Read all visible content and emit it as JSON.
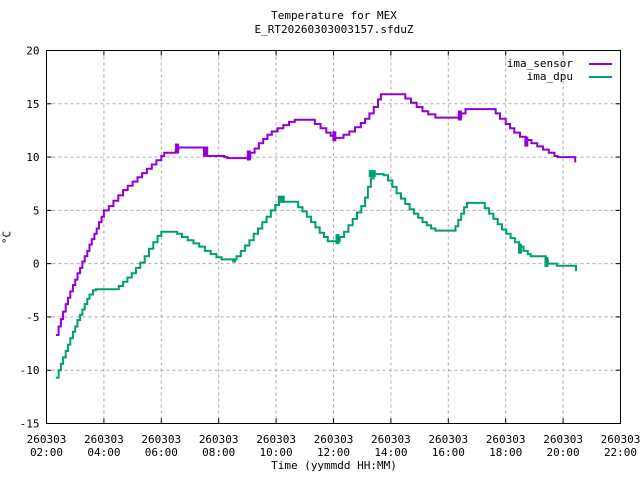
{
  "header": {
    "title": "Temperature for MEX",
    "subtitle": "E_RT20260303003157.sfduZ"
  },
  "chart_data": {
    "type": "line",
    "style": "steps",
    "title": "Temperature for MEX",
    "subtitle": "E_RT20260303003157.sfduZ",
    "xlabel": "Time (yymmdd HH:MM)",
    "ylabel": "°C",
    "x_date_label": "260303",
    "xlim_hours": [
      2,
      22
    ],
    "ylim": [
      -15,
      20
    ],
    "grid": true,
    "legend_position": "top-right-inside",
    "x_ticks": [
      {
        "hour": 2,
        "date": "260303",
        "time": "02:00"
      },
      {
        "hour": 4,
        "date": "260303",
        "time": "04:00"
      },
      {
        "hour": 6,
        "date": "260303",
        "time": "06:00"
      },
      {
        "hour": 8,
        "date": "260303",
        "time": "08:00"
      },
      {
        "hour": 10,
        "date": "260303",
        "time": "10:00"
      },
      {
        "hour": 12,
        "date": "260303",
        "time": "12:00"
      },
      {
        "hour": 14,
        "date": "260303",
        "time": "14:00"
      },
      {
        "hour": 16,
        "date": "260303",
        "time": "16:00"
      },
      {
        "hour": 18,
        "date": "260303",
        "time": "18:00"
      },
      {
        "hour": 20,
        "date": "260303",
        "time": "20:00"
      },
      {
        "hour": 22,
        "date": "260303",
        "time": "22:00"
      }
    ],
    "y_ticks": [
      -15,
      -10,
      -5,
      0,
      5,
      10,
      15,
      20
    ],
    "colors": {
      "grid": "#a8a8a8",
      "axis": "#000000",
      "background": "#ffffff"
    },
    "series": [
      {
        "name": "ima_sensor",
        "color": "#9400d3",
        "points": [
          [
            2.33,
            -6.7
          ],
          [
            2.42,
            -5.9
          ],
          [
            2.5,
            -5.2
          ],
          [
            2.58,
            -4.5
          ],
          [
            2.67,
            -3.8
          ],
          [
            2.75,
            -3.2
          ],
          [
            2.83,
            -2.6
          ],
          [
            2.92,
            -2.0
          ],
          [
            3.0,
            -1.5
          ],
          [
            3.08,
            -0.9
          ],
          [
            3.17,
            -0.4
          ],
          [
            3.25,
            0.2
          ],
          [
            3.33,
            0.7
          ],
          [
            3.42,
            1.2
          ],
          [
            3.5,
            1.8
          ],
          [
            3.58,
            2.3
          ],
          [
            3.67,
            2.8
          ],
          [
            3.75,
            3.3
          ],
          [
            3.83,
            3.9
          ],
          [
            3.92,
            4.4
          ],
          [
            4.0,
            5.0
          ],
          [
            4.17,
            5.4
          ],
          [
            4.33,
            5.9
          ],
          [
            4.5,
            6.4
          ],
          [
            4.67,
            6.9
          ],
          [
            4.83,
            7.3
          ],
          [
            5.0,
            7.7
          ],
          [
            5.17,
            8.1
          ],
          [
            5.33,
            8.5
          ],
          [
            5.5,
            8.9
          ],
          [
            5.67,
            9.3
          ],
          [
            5.83,
            9.7
          ],
          [
            6.0,
            10.1
          ],
          [
            6.1,
            10.4
          ],
          [
            6.5,
            10.7
          ],
          [
            6.6,
            10.9
          ],
          [
            7.45,
            10.9
          ],
          [
            7.6,
            10.1
          ],
          [
            8.2,
            10.0
          ],
          [
            8.3,
            9.9
          ],
          [
            9.0,
            9.9
          ],
          [
            9.1,
            10.4
          ],
          [
            9.25,
            10.8
          ],
          [
            9.4,
            11.3
          ],
          [
            9.55,
            11.7
          ],
          [
            9.7,
            12.1
          ],
          [
            9.85,
            12.4
          ],
          [
            10.05,
            12.7
          ],
          [
            10.25,
            13.0
          ],
          [
            10.45,
            13.3
          ],
          [
            10.65,
            13.5
          ],
          [
            11.2,
            13.5
          ],
          [
            11.35,
            13.1
          ],
          [
            11.55,
            12.7
          ],
          [
            11.75,
            12.3
          ],
          [
            11.9,
            12.0
          ],
          [
            12.0,
            11.8
          ],
          [
            12.25,
            11.8
          ],
          [
            12.35,
            12.1
          ],
          [
            12.55,
            12.4
          ],
          [
            12.75,
            12.8
          ],
          [
            12.95,
            13.2
          ],
          [
            13.1,
            13.6
          ],
          [
            13.25,
            14.1
          ],
          [
            13.4,
            14.7
          ],
          [
            13.55,
            15.4
          ],
          [
            13.65,
            15.9
          ],
          [
            14.35,
            15.9
          ],
          [
            14.5,
            15.5
          ],
          [
            14.7,
            15.1
          ],
          [
            14.9,
            14.7
          ],
          [
            15.1,
            14.3
          ],
          [
            15.3,
            14.0
          ],
          [
            15.55,
            13.7
          ],
          [
            16.35,
            13.7
          ],
          [
            16.45,
            14.1
          ],
          [
            16.6,
            14.5
          ],
          [
            17.5,
            14.5
          ],
          [
            17.65,
            14.1
          ],
          [
            17.8,
            13.6
          ],
          [
            18.0,
            13.1
          ],
          [
            18.15,
            12.7
          ],
          [
            18.3,
            12.3
          ],
          [
            18.5,
            11.9
          ],
          [
            18.7,
            11.6
          ],
          [
            18.9,
            11.3
          ],
          [
            19.1,
            11.0
          ],
          [
            19.3,
            10.7
          ],
          [
            19.5,
            10.4
          ],
          [
            19.7,
            10.1
          ],
          [
            19.8,
            10.0
          ],
          [
            20.3,
            10.0
          ],
          [
            20.42,
            9.5
          ]
        ],
        "square_markers": [],
        "emphasis": [
          [
            6.55,
            10.8
          ],
          [
            7.52,
            10.5
          ],
          [
            9.05,
            10.15
          ],
          [
            12.03,
            11.95
          ],
          [
            16.4,
            13.9
          ],
          [
            18.72,
            11.45
          ]
        ]
      },
      {
        "name": "ima_dpu",
        "color": "#009e73",
        "points": [
          [
            2.33,
            -10.7
          ],
          [
            2.42,
            -10.0
          ],
          [
            2.5,
            -9.4
          ],
          [
            2.58,
            -8.8
          ],
          [
            2.67,
            -8.2
          ],
          [
            2.75,
            -7.6
          ],
          [
            2.83,
            -7.0
          ],
          [
            2.92,
            -6.4
          ],
          [
            3.0,
            -5.9
          ],
          [
            3.08,
            -5.3
          ],
          [
            3.17,
            -4.8
          ],
          [
            3.25,
            -4.3
          ],
          [
            3.33,
            -3.8
          ],
          [
            3.42,
            -3.3
          ],
          [
            3.5,
            -2.9
          ],
          [
            3.62,
            -2.5
          ],
          [
            3.72,
            -2.4
          ],
          [
            4.4,
            -2.4
          ],
          [
            4.52,
            -2.1
          ],
          [
            4.67,
            -1.7
          ],
          [
            4.82,
            -1.3
          ],
          [
            4.97,
            -0.9
          ],
          [
            5.12,
            -0.4
          ],
          [
            5.27,
            0.1
          ],
          [
            5.42,
            0.7
          ],
          [
            5.57,
            1.4
          ],
          [
            5.72,
            2.0
          ],
          [
            5.87,
            2.6
          ],
          [
            6.0,
            3.0
          ],
          [
            6.45,
            3.0
          ],
          [
            6.55,
            2.8
          ],
          [
            6.72,
            2.5
          ],
          [
            6.92,
            2.2
          ],
          [
            7.12,
            1.9
          ],
          [
            7.32,
            1.6
          ],
          [
            7.52,
            1.2
          ],
          [
            7.72,
            0.9
          ],
          [
            7.92,
            0.6
          ],
          [
            8.1,
            0.4
          ],
          [
            8.45,
            0.4
          ],
          [
            8.5,
            0.2
          ],
          [
            8.57,
            0.4
          ],
          [
            8.62,
            0.7
          ],
          [
            8.77,
            1.2
          ],
          [
            8.92,
            1.7
          ],
          [
            9.07,
            2.2
          ],
          [
            9.22,
            2.8
          ],
          [
            9.37,
            3.3
          ],
          [
            9.52,
            3.9
          ],
          [
            9.67,
            4.4
          ],
          [
            9.82,
            5.0
          ],
          [
            9.97,
            5.5
          ],
          [
            10.1,
            5.8
          ],
          [
            10.65,
            5.8
          ],
          [
            10.77,
            5.3
          ],
          [
            10.92,
            4.9
          ],
          [
            11.07,
            4.4
          ],
          [
            11.22,
            3.9
          ],
          [
            11.37,
            3.4
          ],
          [
            11.52,
            2.9
          ],
          [
            11.67,
            2.5
          ],
          [
            11.8,
            2.1
          ],
          [
            12.12,
            2.1
          ],
          [
            12.22,
            2.5
          ],
          [
            12.37,
            3.0
          ],
          [
            12.52,
            3.6
          ],
          [
            12.67,
            4.2
          ],
          [
            12.82,
            4.8
          ],
          [
            12.97,
            5.4
          ],
          [
            13.1,
            6.2
          ],
          [
            13.2,
            7.2
          ],
          [
            13.3,
            8.0
          ],
          [
            13.4,
            8.4
          ],
          [
            13.75,
            8.3
          ],
          [
            13.9,
            7.8
          ],
          [
            14.05,
            7.2
          ],
          [
            14.2,
            6.6
          ],
          [
            14.35,
            6.1
          ],
          [
            14.5,
            5.6
          ],
          [
            14.65,
            5.1
          ],
          [
            14.8,
            4.7
          ],
          [
            14.95,
            4.3
          ],
          [
            15.1,
            3.9
          ],
          [
            15.25,
            3.6
          ],
          [
            15.4,
            3.3
          ],
          [
            15.55,
            3.1
          ],
          [
            16.15,
            3.1
          ],
          [
            16.25,
            3.5
          ],
          [
            16.35,
            4.1
          ],
          [
            16.45,
            4.7
          ],
          [
            16.55,
            5.3
          ],
          [
            16.65,
            5.7
          ],
          [
            17.15,
            5.7
          ],
          [
            17.27,
            5.2
          ],
          [
            17.42,
            4.7
          ],
          [
            17.57,
            4.2
          ],
          [
            17.72,
            3.7
          ],
          [
            17.87,
            3.2
          ],
          [
            18.02,
            2.8
          ],
          [
            18.17,
            2.4
          ],
          [
            18.32,
            2.0
          ],
          [
            18.47,
            1.6
          ],
          [
            18.62,
            1.2
          ],
          [
            18.77,
            0.9
          ],
          [
            18.87,
            0.7
          ],
          [
            19.3,
            0.7
          ],
          [
            19.4,
            0.3
          ],
          [
            19.47,
            0.0
          ],
          [
            19.72,
            0.0
          ],
          [
            19.78,
            -0.2
          ],
          [
            20.35,
            -0.2
          ],
          [
            20.45,
            -0.7
          ]
        ],
        "square_markers": [
          [
            10.18,
            6.05
          ],
          [
            13.35,
            8.45
          ]
        ],
        "emphasis": [
          [
            12.14,
            2.3
          ],
          [
            18.5,
            1.4
          ],
          [
            19.42,
            0.15
          ]
        ]
      }
    ]
  }
}
